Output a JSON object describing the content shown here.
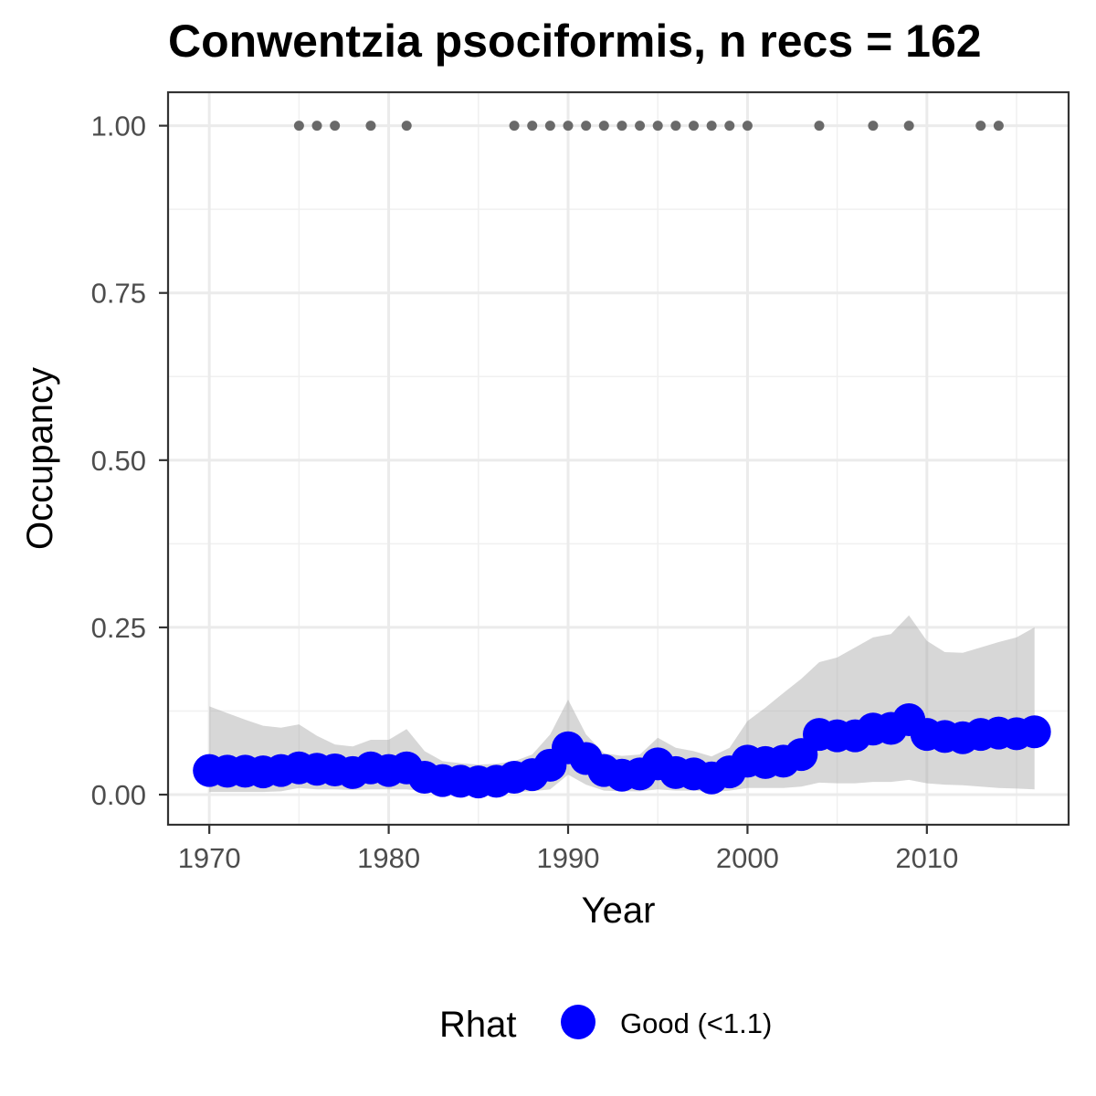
{
  "chart_data": {
    "type": "line",
    "title": "Conwentzia psociformis, n recs = 162",
    "xlabel": "Year",
    "ylabel": "Occupancy",
    "xlim": [
      1967.7,
      2017.9
    ],
    "ylim": [
      -0.045,
      1.05
    ],
    "x_ticks": [
      1970,
      1980,
      1990,
      2000,
      2010
    ],
    "x_tick_labels": [
      "1970",
      "1980",
      "1990",
      "2000",
      "2010"
    ],
    "y_ticks": [
      0,
      0.25,
      0.5,
      0.75,
      1.0
    ],
    "y_tick_labels": [
      "0.00",
      "0.25",
      "0.50",
      "0.75",
      "1.00"
    ],
    "grid": true,
    "legend": {
      "title": "Rhat",
      "position": "bottom",
      "items": [
        {
          "label": "Good (<1.1)",
          "color": "#0000ff"
        }
      ]
    },
    "series": [
      {
        "name": "Good (<1.1)",
        "color": "#0000ff",
        "x": [
          1970,
          1971,
          1972,
          1973,
          1974,
          1975,
          1976,
          1977,
          1978,
          1979,
          1980,
          1981,
          1982,
          1983,
          1984,
          1985,
          1986,
          1987,
          1988,
          1989,
          1990,
          1991,
          1992,
          1993,
          1994,
          1995,
          1996,
          1997,
          1998,
          1999,
          2000,
          2001,
          2002,
          2003,
          2004,
          2005,
          2006,
          2007,
          2008,
          2009,
          2010,
          2011,
          2012,
          2013,
          2014,
          2015,
          2016
        ],
        "y": [
          0.036,
          0.035,
          0.035,
          0.034,
          0.036,
          0.04,
          0.038,
          0.037,
          0.033,
          0.04,
          0.036,
          0.04,
          0.026,
          0.021,
          0.02,
          0.019,
          0.02,
          0.026,
          0.03,
          0.044,
          0.07,
          0.054,
          0.036,
          0.029,
          0.031,
          0.046,
          0.033,
          0.031,
          0.025,
          0.034,
          0.05,
          0.048,
          0.05,
          0.06,
          0.09,
          0.088,
          0.088,
          0.098,
          0.099,
          0.112,
          0.09,
          0.087,
          0.085,
          0.09,
          0.092,
          0.091,
          0.094
        ],
        "lower": [
          0.004,
          0.004,
          0.004,
          0.004,
          0.005,
          0.01,
          0.008,
          0.008,
          0.007,
          0.008,
          0.008,
          0.008,
          0.005,
          0.004,
          0.003,
          0.003,
          0.003,
          0.004,
          0.005,
          0.008,
          0.03,
          0.015,
          0.006,
          0.005,
          0.005,
          0.008,
          0.006,
          0.006,
          0.004,
          0.006,
          0.01,
          0.01,
          0.01,
          0.012,
          0.018,
          0.017,
          0.017,
          0.019,
          0.019,
          0.022,
          0.017,
          0.015,
          0.014,
          0.012,
          0.01,
          0.009,
          0.008
        ],
        "upper": [
          0.132,
          0.122,
          0.112,
          0.103,
          0.1,
          0.105,
          0.088,
          0.075,
          0.072,
          0.082,
          0.082,
          0.098,
          0.065,
          0.05,
          0.047,
          0.045,
          0.046,
          0.05,
          0.06,
          0.09,
          0.142,
          0.09,
          0.062,
          0.058,
          0.06,
          0.085,
          0.07,
          0.065,
          0.057,
          0.07,
          0.11,
          0.13,
          0.152,
          0.173,
          0.198,
          0.205,
          0.22,
          0.235,
          0.24,
          0.268,
          0.23,
          0.213,
          0.212,
          0.22,
          0.228,
          0.235,
          0.25
        ]
      }
    ],
    "records": {
      "y": 1.0,
      "color": "#696969",
      "years": [
        1975,
        1976,
        1977,
        1979,
        1981,
        1987,
        1988,
        1989,
        1990,
        1991,
        1992,
        1993,
        1994,
        1995,
        1996,
        1997,
        1998,
        1999,
        2000,
        2004,
        2007,
        2009,
        2013,
        2014
      ]
    }
  }
}
